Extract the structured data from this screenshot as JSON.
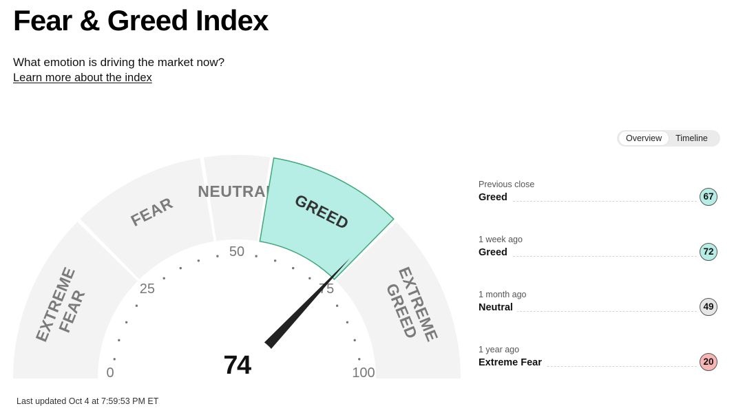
{
  "header": {
    "title": "Fear & Greed Index",
    "subtitle": "What emotion is driving the market now?",
    "learn_more": "Learn more about the index"
  },
  "toggle": {
    "options": [
      "Overview",
      "Timeline"
    ],
    "active": "Overview"
  },
  "gauge": {
    "value": "74",
    "current_rating": "Greed",
    "range": [
      0,
      100
    ],
    "segments": [
      {
        "label": "EXTREME FEAR",
        "from": 0,
        "to": 25
      },
      {
        "label": "FEAR",
        "from": 25,
        "to": 45
      },
      {
        "label": "NEUTRAL",
        "from": 45,
        "to": 55
      },
      {
        "label": "GREED",
        "from": 55,
        "to": 75
      },
      {
        "label": "EXTREME GREED",
        "from": 75,
        "to": 100
      }
    ],
    "ticks": [
      "0",
      "25",
      "50",
      "75",
      "100"
    ],
    "colors": {
      "segment": "#f3f3f3",
      "active": "#b6ede4",
      "active_border": "#3fa877",
      "needle": "#222222"
    }
  },
  "last_updated": "Last updated Oct 4 at 7:59:53 PM ET",
  "history": [
    {
      "label": "Previous close",
      "rating": "Greed",
      "value": "67",
      "color": "#b6ede4"
    },
    {
      "label": "1 week ago",
      "rating": "Greed",
      "value": "72",
      "color": "#b6ede4"
    },
    {
      "label": "1 month ago",
      "rating": "Neutral",
      "value": "49",
      "color": "#e6e6e6"
    },
    {
      "label": "1 year ago",
      "rating": "Extreme Fear",
      "value": "20",
      "color": "#f7b5b5"
    }
  ]
}
